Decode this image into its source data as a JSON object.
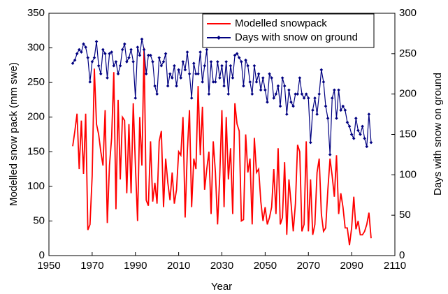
{
  "chart_data": {
    "type": "line",
    "x_label": "Year",
    "y_label": "Modelled snow pack (mm swe)",
    "y2_label": "Days with snow on ground",
    "x": [
      1961,
      1962,
      1963,
      1964,
      1965,
      1966,
      1967,
      1968,
      1969,
      1970,
      1971,
      1972,
      1973,
      1974,
      1975,
      1976,
      1977,
      1978,
      1979,
      1980,
      1981,
      1982,
      1983,
      1984,
      1985,
      1986,
      1987,
      1988,
      1989,
      1990,
      1991,
      1992,
      1993,
      1994,
      1995,
      1996,
      1997,
      1998,
      1999,
      2000,
      2001,
      2002,
      2003,
      2004,
      2005,
      2006,
      2007,
      2008,
      2009,
      2010,
      2011,
      2012,
      2013,
      2014,
      2015,
      2016,
      2017,
      2018,
      2019,
      2020,
      2021,
      2022,
      2023,
      2024,
      2025,
      2026,
      2027,
      2028,
      2029,
      2030,
      2031,
      2032,
      2033,
      2034,
      2035,
      2036,
      2037,
      2038,
      2039,
      2040,
      2041,
      2042,
      2043,
      2044,
      2045,
      2046,
      2047,
      2048,
      2049,
      2050,
      2051,
      2052,
      2053,
      2054,
      2055,
      2056,
      2057,
      2058,
      2059,
      2060,
      2061,
      2062,
      2063,
      2064,
      2065,
      2066,
      2067,
      2068,
      2069,
      2070,
      2071,
      2072,
      2073,
      2074,
      2075,
      2076,
      2077,
      2078,
      2079,
      2080,
      2081,
      2082,
      2083,
      2084,
      2085,
      2086,
      2087,
      2088,
      2089,
      2090,
      2091,
      2092,
      2093,
      2094,
      2095,
      2096,
      2097,
      2098,
      2099
    ],
    "series": [
      {
        "name": "Modelled snowpack",
        "color": "#ff0000",
        "values": [
          158,
          180,
          205,
          125,
          195,
          118,
          205,
          37,
          45,
          115,
          270,
          190,
          175,
          150,
          130,
          210,
          47,
          130,
          170,
          265,
          67,
          225,
          110,
          200,
          195,
          90,
          190,
          90,
          220,
          130,
          50,
          200,
          130,
          300,
          80,
          72,
          165,
          78,
          105,
          75,
          165,
          180,
          70,
          140,
          105,
          80,
          120,
          75,
          95,
          150,
          145,
          200,
          55,
          150,
          210,
          70,
          140,
          125,
          245,
          145,
          215,
          95,
          125,
          150,
          60,
          165,
          120,
          45,
          115,
          210,
          70,
          200,
          110,
          155,
          60,
          220,
          190,
          180,
          50,
          52,
          175,
          120,
          140,
          45,
          170,
          120,
          125,
          78,
          50,
          70,
          45,
          55,
          70,
          125,
          60,
          155,
          45,
          55,
          135,
          30,
          110,
          75,
          35,
          75,
          160,
          150,
          35,
          45,
          165,
          35,
          110,
          30,
          45,
          120,
          140,
          60,
          35,
          40,
          95,
          140,
          115,
          85,
          145,
          60,
          90,
          70,
          40,
          40,
          15,
          40,
          85,
          38,
          50,
          30,
          30,
          35,
          45,
          62,
          25
        ]
      },
      {
        "name": "Days with snow on ground",
        "color": "#000080",
        "axis": "y2",
        "marker": "diamond",
        "values": [
          238,
          242,
          250,
          255,
          252,
          262,
          258,
          245,
          215,
          240,
          245,
          265,
          235,
          225,
          255,
          250,
          220,
          250,
          252,
          235,
          240,
          225,
          235,
          255,
          262,
          240,
          245,
          255,
          240,
          195,
          258,
          248,
          268,
          255,
          225,
          248,
          248,
          240,
          210,
          200,
          245,
          235,
          240,
          250,
          210,
          225,
          220,
          235,
          210,
          230,
          220,
          240,
          230,
          252,
          225,
          195,
          238,
          225,
          225,
          252,
          215,
          235,
          255,
          200,
          240,
          215,
          215,
          240,
          220,
          235,
          210,
          240,
          200,
          235,
          220,
          248,
          250,
          245,
          240,
          210,
          242,
          235,
          215,
          200,
          235,
          215,
          225,
          205,
          220,
          205,
          190,
          225,
          220,
          195,
          200,
          210,
          185,
          220,
          210,
          175,
          205,
          190,
          185,
          200,
          200,
          220,
          200,
          195,
          200,
          195,
          140,
          180,
          195,
          175,
          200,
          230,
          215,
          185,
          170,
          125,
          195,
          205,
          170,
          205,
          180,
          185,
          180,
          165,
          160,
          150,
          145,
          170,
          155,
          150,
          160,
          145,
          135,
          175,
          140
        ]
      }
    ],
    "xlim": [
      1950,
      2110
    ],
    "xticks": [
      1950,
      1970,
      1990,
      2010,
      2030,
      2050,
      2070,
      2090,
      2110
    ],
    "ylim": [
      0,
      350
    ],
    "yticks": [
      0,
      50,
      100,
      150,
      200,
      250,
      300,
      350
    ],
    "y2lim": [
      0,
      300
    ],
    "y2ticks": [
      0,
      50,
      100,
      150,
      200,
      250,
      300
    ],
    "legend": "upper right",
    "grid": false
  }
}
